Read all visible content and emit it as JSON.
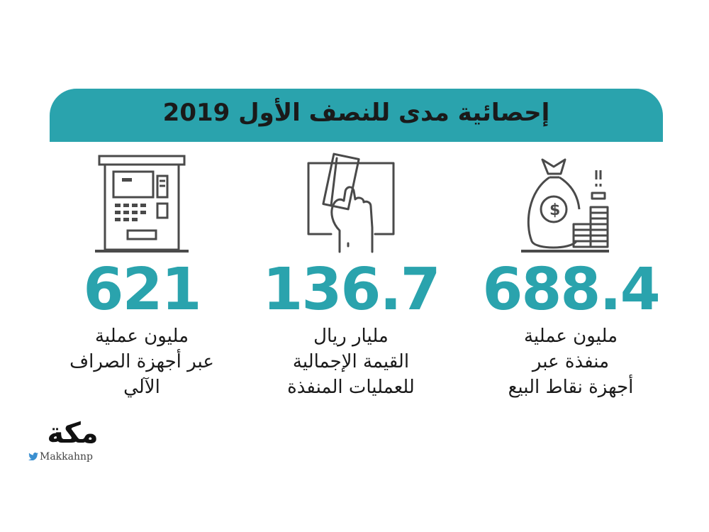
{
  "header": {
    "title": "إحصائية مدى للنصف الأول 2019"
  },
  "stats": [
    {
      "icon": "atm-icon",
      "value": "621",
      "lines": [
        "مليون عملية",
        "عبر أجهزة الصراف",
        "الآلي"
      ]
    },
    {
      "icon": "card-in-hand-icon",
      "value": "136.7",
      "lines": [
        "مليار ريال",
        "القيمة الإجمالية",
        "للعمليات المنفذة"
      ]
    },
    {
      "icon": "money-bag-coins-icon",
      "value": "688.4",
      "lines": [
        "مليون عملية",
        "منفذة عبر",
        "أجهزة نقاط البيع"
      ]
    }
  ],
  "logo": {
    "mark": "مكة",
    "handle": "Makkahnp",
    "handle_icon": "twitter-bird-icon"
  },
  "colors": {
    "accent": "#2aa3ad",
    "text": "#1a1a1a",
    "icon_stroke": "#4a4a4a"
  }
}
